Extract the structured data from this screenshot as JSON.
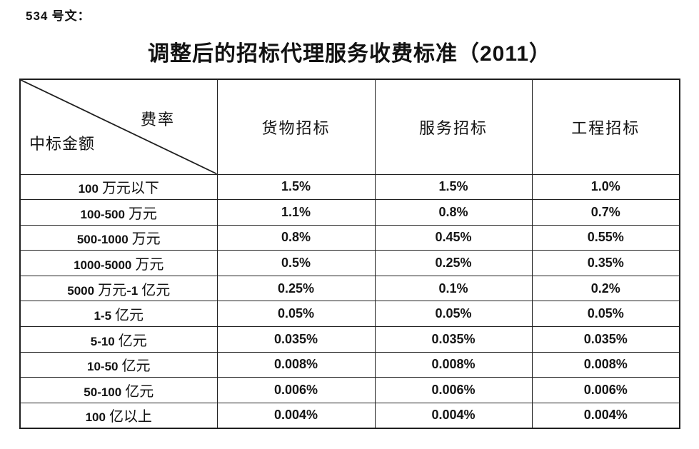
{
  "page": {
    "doc_ref": "534 号文：",
    "title": "调整后的招标代理服务收费标准（2011）"
  },
  "table": {
    "corner": {
      "top_right_label": "费率",
      "bottom_left_label": "中标金额"
    },
    "columns": [
      "货物招标",
      "服务招标",
      "工程招标"
    ],
    "rows": [
      {
        "label": "100 万元以下",
        "values": [
          "1.5%",
          "1.5%",
          "1.0%"
        ]
      },
      {
        "label": "100-500 万元",
        "values": [
          "1.1%",
          "0.8%",
          "0.7%"
        ]
      },
      {
        "label": "500-1000 万元",
        "values": [
          "0.8%",
          "0.45%",
          "0.55%"
        ]
      },
      {
        "label": "1000-5000 万元",
        "values": [
          "0.5%",
          "0.25%",
          "0.35%"
        ]
      },
      {
        "label": "5000 万元-1 亿元",
        "values": [
          "0.25%",
          "0.1%",
          "0.2%"
        ]
      },
      {
        "label": "1-5 亿元",
        "values": [
          "0.05%",
          "0.05%",
          "0.05%"
        ]
      },
      {
        "label": "5-10 亿元",
        "values": [
          "0.035%",
          "0.035%",
          "0.035%"
        ]
      },
      {
        "label": "10-50 亿元",
        "values": [
          "0.008%",
          "0.008%",
          "0.008%"
        ]
      },
      {
        "label": "50-100 亿元",
        "values": [
          "0.006%",
          "0.006%",
          "0.006%"
        ]
      },
      {
        "label": "100 亿以上",
        "values": [
          "0.004%",
          "0.004%",
          "0.004%"
        ]
      }
    ],
    "colors": {
      "border": "#1f1f1f",
      "text": "#121212",
      "background": "#ffffff"
    }
  }
}
